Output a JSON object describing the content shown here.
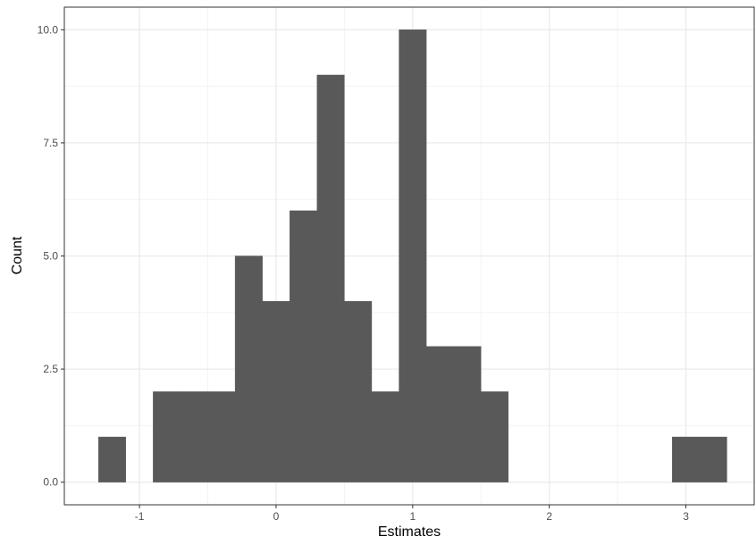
{
  "chart_data": {
    "type": "bar",
    "title": "",
    "xlabel": "Estimates",
    "ylabel": "Count",
    "x_ticks": [
      -1,
      0,
      1,
      2,
      3
    ],
    "x_tick_labels": [
      "-1",
      "0",
      "1",
      "2",
      "3"
    ],
    "y_ticks": [
      0,
      2.5,
      5,
      7.5,
      10
    ],
    "y_tick_labels": [
      "0.0",
      "2.5",
      "5.0",
      "7.5",
      "10.0"
    ],
    "xlim": [
      -1.55,
      3.5
    ],
    "ylim": [
      -0.5,
      10.5
    ],
    "grid": true,
    "bin_width": 0.2,
    "bar_color": "#595959",
    "bins": [
      {
        "x": -1.2,
        "count": 1
      },
      {
        "x": -0.8,
        "count": 2
      },
      {
        "x": -0.6,
        "count": 2
      },
      {
        "x": -0.4,
        "count": 2
      },
      {
        "x": -0.2,
        "count": 5
      },
      {
        "x": 0.0,
        "count": 4
      },
      {
        "x": 0.2,
        "count": 6
      },
      {
        "x": 0.4,
        "count": 9
      },
      {
        "x": 0.6,
        "count": 4
      },
      {
        "x": 0.8,
        "count": 2
      },
      {
        "x": 1.0,
        "count": 10
      },
      {
        "x": 1.2,
        "count": 3
      },
      {
        "x": 1.4,
        "count": 3
      },
      {
        "x": 1.6,
        "count": 2
      },
      {
        "x": 3.0,
        "count": 1
      },
      {
        "x": 3.2,
        "count": 1
      }
    ]
  },
  "colors": {
    "panel_border": "#333333",
    "grid_major": "#ebebeb",
    "grid_minor": "#f3f3f3",
    "tick": "#333333"
  }
}
